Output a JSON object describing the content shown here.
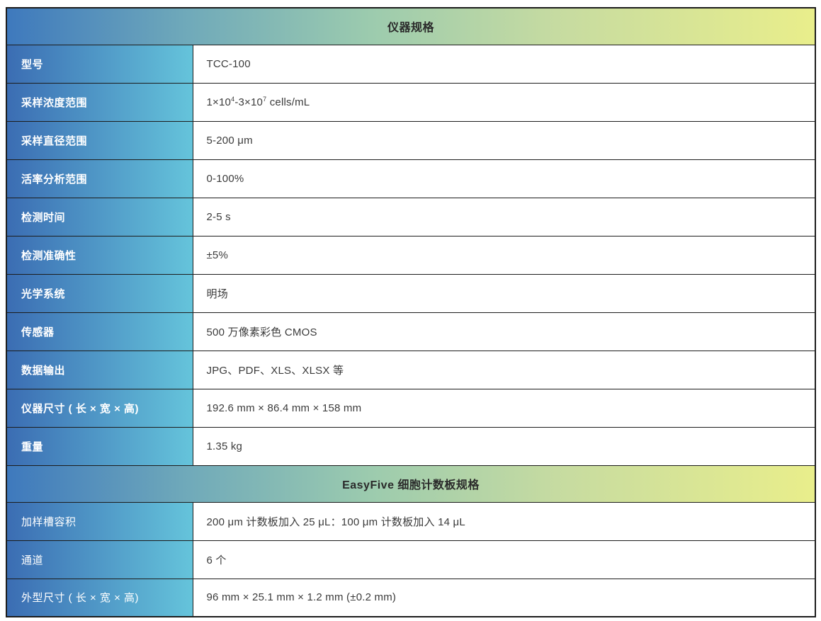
{
  "colors": {
    "header_grad_left": "#3e79bd",
    "header_grad_mid": "#9ccbae",
    "header_grad_right": "#e9ee8b",
    "label_grad_left": "#3b6db3",
    "label_grad_right": "#65c4db",
    "border": "#1c1c1c",
    "header_text": "#2a2a2a",
    "label_text": "#ffffff",
    "value_text": "#3b3b3b"
  },
  "sections": [
    {
      "title": "仪器规格",
      "bold_labels": true,
      "rows": [
        {
          "label": "型号",
          "value": "TCC-100"
        },
        {
          "label": "采样浓度范围",
          "value": "1×10^4^-3×10^7^ cells/mL"
        },
        {
          "label": "采样直径范围",
          "value": "5-200 μm"
        },
        {
          "label": "活率分析范围",
          "value": "0-100%"
        },
        {
          "label": "检测时间",
          "value": "2-5 s"
        },
        {
          "label": "检测准确性",
          "value": "±5%"
        },
        {
          "label": "光学系统",
          "value": "明场"
        },
        {
          "label": "传感器",
          "value": "500 万像素彩色 CMOS"
        },
        {
          "label": "数据输出",
          "value": "JPG、PDF、XLS、XLSX 等"
        },
        {
          "label": "仪器尺寸 ( 长 × 宽 × 高)",
          "value": "192.6 mm × 86.4 mm × 158 mm"
        },
        {
          "label": "重量",
          "value": "1.35 kg"
        }
      ]
    },
    {
      "title": "EasyFive 细胞计数板规格",
      "bold_labels": false,
      "rows": [
        {
          "label": "加样槽容积",
          "value": "200 μm 计数板加入 25 μL：100 μm 计数板加入 14 μL"
        },
        {
          "label": "通道",
          "value": "6 个"
        },
        {
          "label": "外型尺寸 ( 长 × 宽 × 高)",
          "value": "96 mm × 25.1 mm × 1.2 mm (±0.2 mm)"
        }
      ]
    }
  ]
}
